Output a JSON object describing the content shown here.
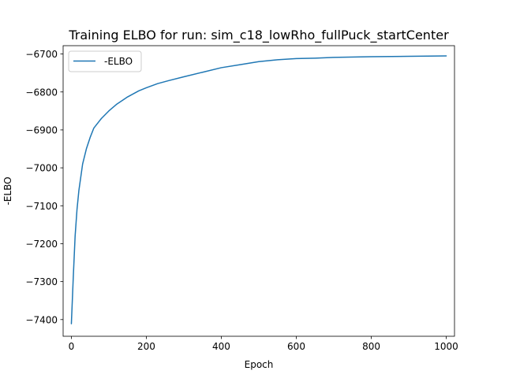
{
  "chart_data": {
    "type": "line",
    "title": "Training ELBO for run: sim_c18_lowRho_fullPuck_startCenter",
    "xlabel": "Epoch",
    "ylabel": "-ELBO",
    "xlim": [
      -22,
      1022
    ],
    "ylim": [
      -7444,
      -6678
    ],
    "xticks": [
      0,
      200,
      400,
      600,
      800,
      1000
    ],
    "xtick_labels": [
      "0",
      "200",
      "400",
      "600",
      "800",
      "1000"
    ],
    "yticks": [
      -7400,
      -7300,
      -7200,
      -7100,
      -7000,
      -6900,
      -6800,
      -6700
    ],
    "ytick_labels": [
      "−7400",
      "−7300",
      "−7200",
      "−7100",
      "−7000",
      "−6900",
      "−6800",
      "−6700"
    ],
    "grid": false,
    "legend_position": "upper-left",
    "series": [
      {
        "name": "-ELBO",
        "color": "#1f77b4",
        "x": [
          0,
          5,
          10,
          15,
          20,
          30,
          40,
          50,
          60,
          80,
          100,
          120,
          150,
          180,
          200,
          230,
          260,
          300,
          350,
          400,
          450,
          500,
          550,
          600,
          650,
          700,
          800,
          900,
          1000
        ],
        "y": [
          -7411,
          -7290,
          -7180,
          -7110,
          -7060,
          -6990,
          -6950,
          -6920,
          -6895,
          -6870,
          -6850,
          -6833,
          -6813,
          -6797,
          -6789,
          -6778,
          -6770,
          -6760,
          -6748,
          -6736,
          -6728,
          -6720,
          -6715,
          -6712,
          -6711,
          -6709,
          -6707,
          -6706,
          -6705
        ]
      }
    ]
  }
}
